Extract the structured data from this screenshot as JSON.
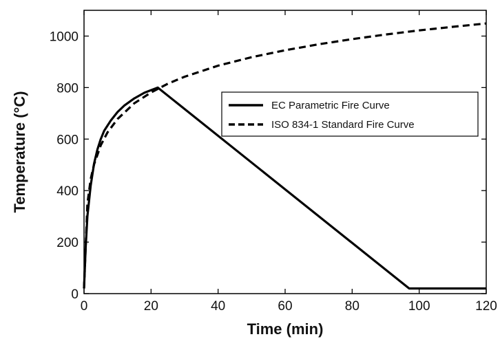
{
  "chart_data": {
    "type": "line",
    "xlabel": "Time (min)",
    "ylabel": "Temperature (°C)",
    "xlim": [
      0,
      120
    ],
    "ylim": [
      0,
      1100
    ],
    "xticks": [
      0,
      20,
      40,
      60,
      80,
      100,
      120
    ],
    "yticks": [
      0,
      200,
      400,
      600,
      800,
      1000
    ],
    "grid": false,
    "legend_position": "center-right",
    "series": [
      {
        "name": "EC Parametric Fire Curve",
        "style": "solid",
        "color": "#000000",
        "x": [
          0,
          0.5,
          1,
          2,
          3,
          4,
          5,
          6,
          8,
          10,
          12,
          15,
          18,
          20,
          22,
          97,
          120
        ],
        "y": [
          20,
          180,
          300,
          420,
          505,
          560,
          600,
          632,
          672,
          705,
          730,
          758,
          780,
          790,
          800,
          20,
          20
        ]
      },
      {
        "name": "ISO 834-1 Standard Fire Curve",
        "style": "dashed",
        "color": "#000000",
        "x": [
          0,
          1,
          2,
          3,
          5,
          7,
          10,
          15,
          20,
          25,
          30,
          40,
          50,
          60,
          70,
          80,
          90,
          100,
          110,
          120
        ],
        "y": [
          20,
          349,
          445,
          502,
          576,
          626,
          678,
          739,
          781,
          815,
          842,
          885,
          918,
          945,
          968,
          988,
          1006,
          1022,
          1036,
          1049
        ]
      }
    ]
  }
}
